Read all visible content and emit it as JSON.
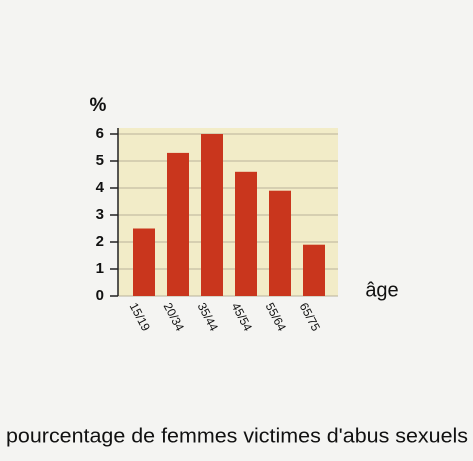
{
  "chart_data": {
    "type": "bar",
    "y_label": "%",
    "x_label": "âge",
    "caption": "pourcentage de femmes victimes d'abus sexuels",
    "categories": [
      "15/19",
      "20/34",
      "35/44",
      "45/54",
      "55/64",
      "65/75"
    ],
    "values": [
      2.5,
      5.3,
      6.0,
      4.6,
      3.9,
      1.9
    ],
    "color": "#c9361d",
    "ylim": [
      0,
      6
    ],
    "yticks": [
      0,
      1,
      2,
      3,
      4,
      5,
      6
    ],
    "grid": true
  }
}
